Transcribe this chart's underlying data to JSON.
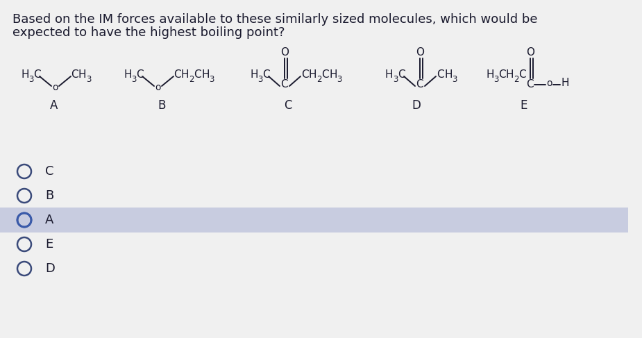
{
  "question_line1": "Based on the IM forces available to these similarly sized molecules, which would be",
  "question_line2": "expected to have the highest boiling point?",
  "bg_color": "#f0f0f0",
  "mol_text_color": "#1a1a2e",
  "choices": [
    "C",
    "B",
    "A",
    "E",
    "D"
  ],
  "selected": "A",
  "selected_index": 2,
  "highlight_color": "#c8cce0",
  "radio_border_color": "#3a4a7a",
  "radio_fill_color": "#3a4a7a"
}
